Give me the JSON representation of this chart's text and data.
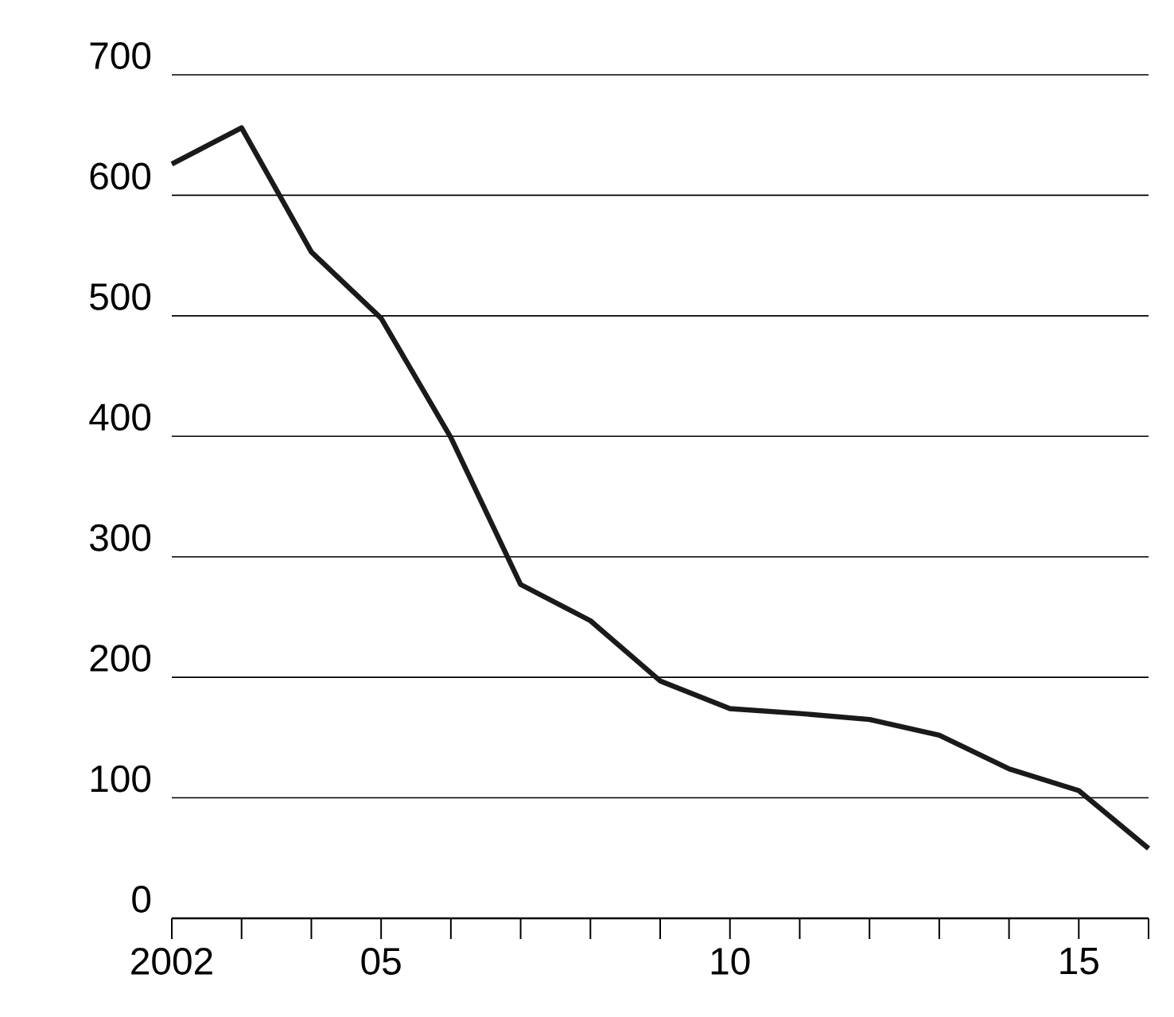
{
  "chart_data": {
    "type": "line",
    "x": [
      2002,
      2003,
      2004,
      2005,
      2006,
      2007,
      2008,
      2009,
      2010,
      2011,
      2012,
      2013,
      2014,
      2015,
      2016
    ],
    "values": [
      626,
      656,
      553,
      498,
      399,
      277,
      247,
      197,
      174,
      170,
      165,
      152,
      124,
      106,
      58
    ],
    "color": "#1a1a1a",
    "line_style": "solid",
    "grid": "y",
    "xlim": [
      2002,
      2016
    ],
    "ylim": [
      0,
      700
    ],
    "xticks": [
      {
        "value": 2002,
        "label": "2002"
      },
      {
        "value": 2003,
        "label": null
      },
      {
        "value": 2004,
        "label": null
      },
      {
        "value": 2005,
        "label": "05"
      },
      {
        "value": 2006,
        "label": null
      },
      {
        "value": 2007,
        "label": null
      },
      {
        "value": 2008,
        "label": null
      },
      {
        "value": 2009,
        "label": null
      },
      {
        "value": 2010,
        "label": "10"
      },
      {
        "value": 2011,
        "label": null
      },
      {
        "value": 2012,
        "label": null
      },
      {
        "value": 2013,
        "label": null
      },
      {
        "value": 2014,
        "label": null
      },
      {
        "value": 2015,
        "label": "15"
      },
      {
        "value": 2016,
        "label": null
      }
    ],
    "yticks": [
      0,
      100,
      200,
      300,
      400,
      500,
      600,
      700
    ]
  }
}
